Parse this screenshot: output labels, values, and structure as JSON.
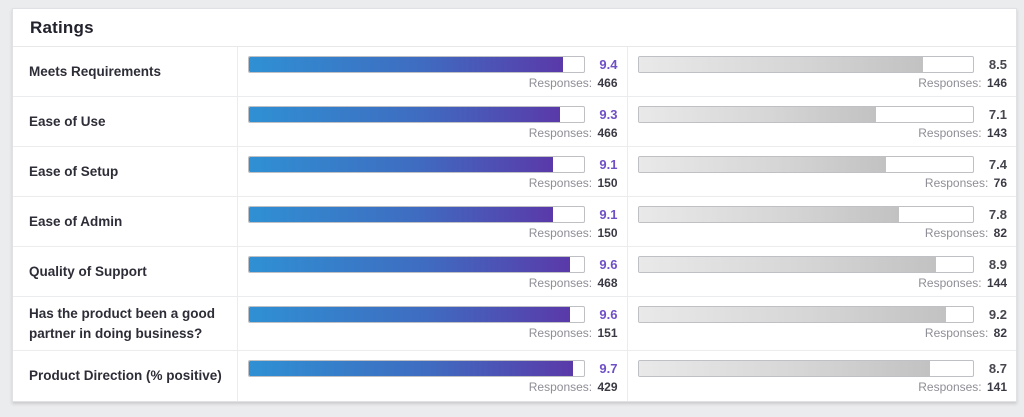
{
  "header": {
    "title": "Ratings"
  },
  "labels": {
    "responses": "Responses:"
  },
  "colors": {
    "bar_gradient_start": "#2f90d3",
    "bar_gradient_end": "#5a39a9",
    "gray_gradient_start": "#e9e9e9",
    "gray_gradient_end": "#c2c2c2",
    "value_purple": "#6e4fc6",
    "value_gray": "#46464e",
    "page_background": "#ebecee"
  },
  "rows": [
    {
      "label": "Meets Requirements",
      "left": {
        "value": "9.4",
        "responses": "466"
      },
      "right": {
        "value": "8.5",
        "responses": "146"
      }
    },
    {
      "label": "Ease of Use",
      "left": {
        "value": "9.3",
        "responses": "466"
      },
      "right": {
        "value": "7.1",
        "responses": "143"
      }
    },
    {
      "label": "Ease of Setup",
      "left": {
        "value": "9.1",
        "responses": "150"
      },
      "right": {
        "value": "7.4",
        "responses": "76"
      }
    },
    {
      "label": "Ease of Admin",
      "left": {
        "value": "9.1",
        "responses": "150"
      },
      "right": {
        "value": "7.8",
        "responses": "82"
      }
    },
    {
      "label": "Quality of Support",
      "left": {
        "value": "9.6",
        "responses": "468"
      },
      "right": {
        "value": "8.9",
        "responses": "144"
      }
    },
    {
      "label": "Has the product been a good partner in doing business?",
      "left": {
        "value": "9.6",
        "responses": "151"
      },
      "right": {
        "value": "9.2",
        "responses": "82"
      }
    },
    {
      "label": "Product Direction (% positive)",
      "left": {
        "value": "9.7",
        "responses": "429"
      },
      "right": {
        "value": "8.7",
        "responses": "141"
      }
    }
  ],
  "chart_data": {
    "type": "bar",
    "title": "Ratings",
    "orientation": "horizontal",
    "scale_max": 10,
    "categories": [
      "Meets Requirements",
      "Ease of Use",
      "Ease of Setup",
      "Ease of Admin",
      "Quality of Support",
      "Has the product been a good partner in doing business?",
      "Product Direction (% positive)"
    ],
    "series": [
      {
        "name": "product-left",
        "values": [
          9.4,
          9.3,
          9.1,
          9.1,
          9.6,
          9.6,
          9.7
        ],
        "responses": [
          466,
          466,
          150,
          150,
          468,
          151,
          429
        ]
      },
      {
        "name": "product-right",
        "values": [
          8.5,
          7.1,
          7.4,
          7.8,
          8.9,
          9.2,
          8.7
        ],
        "responses": [
          146,
          143,
          76,
          82,
          144,
          82,
          141
        ]
      }
    ]
  }
}
